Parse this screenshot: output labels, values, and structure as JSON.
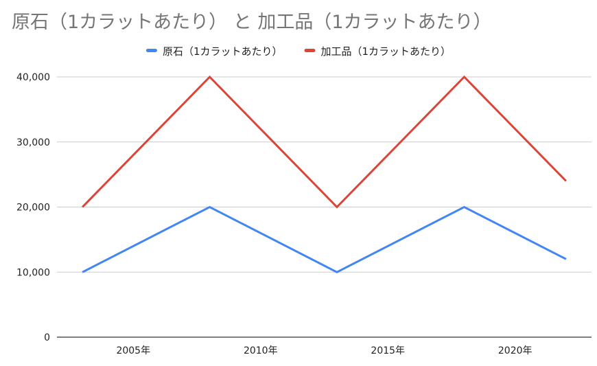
{
  "chart_data": {
    "type": "line",
    "title": "原石（1カラットあたり） と 加工品（1カラットあたり）",
    "xlabel": "",
    "ylabel": "",
    "x": [
      2003,
      2008,
      2013,
      2018,
      2022
    ],
    "xlim": [
      2002,
      2023
    ],
    "x_ticks": [
      2005,
      2010,
      2015,
      2020
    ],
    "x_tick_labels": [
      "2005年",
      "2010年",
      "2015年",
      "2020年"
    ],
    "ylim": [
      0,
      40000
    ],
    "y_ticks": [
      0,
      10000,
      20000,
      30000,
      40000
    ],
    "y_tick_labels": [
      "0",
      "10,000",
      "20,000",
      "30,000",
      "40,000"
    ],
    "grid": true,
    "legend_position": "top",
    "series": [
      {
        "name": "原石（1カラットあたり）",
        "color": "#4285f4",
        "values": [
          10000,
          20000,
          10000,
          20000,
          12000
        ]
      },
      {
        "name": "加工品（1カラットあたり）",
        "color": "#db4437",
        "values": [
          20000,
          40000,
          20000,
          40000,
          24000
        ]
      }
    ]
  }
}
